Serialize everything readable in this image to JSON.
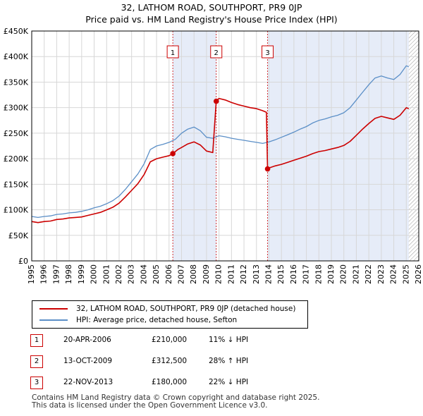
{
  "title_line1": "32, LATHOM ROAD, SOUTHPORT, PR9 0JP",
  "title_line2": "Price paid vs. HM Land Registry's House Price Index (HPI)",
  "legend": {
    "property_label": "32, LATHOM ROAD, SOUTHPORT, PR9 0JP (detached house)",
    "hpi_label": "HPI: Average price, detached house, Sefton"
  },
  "transactions": [
    {
      "id": "1",
      "date": "20-APR-2006",
      "price": "£210,000",
      "hpi": "11% ↓ HPI"
    },
    {
      "id": "2",
      "date": "13-OCT-2009",
      "price": "£312,500",
      "hpi": "28% ↑ HPI"
    },
    {
      "id": "3",
      "date": "22-NOV-2013",
      "price": "£180,000",
      "hpi": "22% ↓ HPI"
    }
  ],
  "footer_line1": "Contains HM Land Registry data © Crown copyright and database right 2025.",
  "footer_line2": "This data is licensed under the Open Government Licence v3.0.",
  "colors": {
    "property": "#cc0000",
    "hpi": "#5b8fc7",
    "shade": "#e6ecf8",
    "grid": "#d7d7d7",
    "future_hatch": "#999999"
  },
  "chart_data": {
    "type": "line",
    "title": "32, LATHOM ROAD, SOUTHPORT, PR9 0JP",
    "xlim": [
      1995,
      2026
    ],
    "ylim": [
      0,
      450000
    ],
    "x_ticks": [
      1995,
      1996,
      1997,
      1998,
      1999,
      2000,
      2001,
      2002,
      2003,
      2004,
      2005,
      2006,
      2007,
      2008,
      2009,
      2010,
      2011,
      2012,
      2013,
      2014,
      2015,
      2016,
      2017,
      2018,
      2019,
      2020,
      2021,
      2022,
      2023,
      2024,
      2025,
      2026
    ],
    "y_ticks": [
      {
        "value": 0,
        "label": "£0"
      },
      {
        "value": 50000,
        "label": "£50K"
      },
      {
        "value": 100000,
        "label": "£100K"
      },
      {
        "value": 150000,
        "label": "£150K"
      },
      {
        "value": 200000,
        "label": "£200K"
      },
      {
        "value": 250000,
        "label": "£250K"
      },
      {
        "value": 300000,
        "label": "£300K"
      },
      {
        "value": 350000,
        "label": "£350K"
      },
      {
        "value": 400000,
        "label": "£400K"
      },
      {
        "value": 450000,
        "label": "£450K"
      }
    ],
    "shaded_ranges": [
      [
        2006.3,
        2009.78
      ],
      [
        2013.89,
        2025.2
      ]
    ],
    "future_from": 2025.2,
    "markers": [
      {
        "label": "1",
        "x": 2006.3,
        "y": 210000
      },
      {
        "label": "2",
        "x": 2009.78,
        "y": 312500
      },
      {
        "label": "3",
        "x": 2013.89,
        "y": 180000
      }
    ],
    "series": [
      {
        "name": "HPI: Average price, detached house, Sefton",
        "x": [
          1995,
          1995.5,
          1996,
          1996.5,
          1997,
          1997.5,
          1998,
          1998.5,
          1999,
          1999.5,
          2000,
          2000.5,
          2001,
          2001.5,
          2002,
          2002.5,
          2003,
          2003.5,
          2004,
          2004.5,
          2005,
          2005.5,
          2006,
          2006.5,
          2007,
          2007.5,
          2008,
          2008.5,
          2009,
          2009.5,
          2010,
          2010.5,
          2011,
          2011.5,
          2012,
          2012.5,
          2013,
          2013.5,
          2014,
          2014.5,
          2015,
          2015.5,
          2016,
          2016.5,
          2017,
          2017.5,
          2018,
          2018.5,
          2019,
          2019.5,
          2020,
          2020.5,
          2021,
          2021.5,
          2022,
          2022.5,
          2023,
          2023.5,
          2024,
          2024.5,
          2025,
          2025.2
        ],
        "values": [
          87000,
          85000,
          87000,
          88000,
          91000,
          92000,
          94000,
          95000,
          97000,
          100000,
          104000,
          107000,
          112000,
          118000,
          127000,
          140000,
          155000,
          170000,
          190000,
          218000,
          225000,
          228000,
          232000,
          238000,
          250000,
          258000,
          262000,
          255000,
          242000,
          240000,
          245000,
          243000,
          240000,
          238000,
          236000,
          234000,
          232000,
          230000,
          233000,
          237000,
          242000,
          247000,
          252000,
          258000,
          263000,
          270000,
          275000,
          278000,
          282000,
          285000,
          290000,
          300000,
          315000,
          330000,
          345000,
          358000,
          362000,
          358000,
          355000,
          365000,
          382000,
          380000
        ]
      },
      {
        "name": "32, LATHOM ROAD, SOUTHPORT, PR9 0JP (detached house)",
        "x": [
          1995,
          1995.5,
          1996,
          1996.5,
          1997,
          1997.5,
          1998,
          1998.5,
          1999,
          1999.5,
          2000,
          2000.5,
          2001,
          2001.5,
          2002,
          2002.5,
          2003,
          2003.5,
          2004,
          2004.5,
          2005,
          2005.5,
          2006,
          2006.3,
          2006.7,
          2007,
          2007.5,
          2008,
          2008.5,
          2009,
          2009.5,
          2009.78,
          2010,
          2010.5,
          2011,
          2011.5,
          2012,
          2012.5,
          2013,
          2013.5,
          2013.8,
          2013.89,
          2014,
          2014.5,
          2015,
          2015.5,
          2016,
          2016.5,
          2017,
          2017.5,
          2018,
          2018.5,
          2019,
          2019.5,
          2020,
          2020.5,
          2021,
          2021.5,
          2022,
          2022.5,
          2023,
          2023.5,
          2024,
          2024.5,
          2025,
          2025.2
        ],
        "values": [
          77000,
          75000,
          77000,
          78000,
          81000,
          82000,
          84000,
          85000,
          86000,
          89000,
          92000,
          95000,
          100000,
          105000,
          113000,
          125000,
          138000,
          151000,
          169000,
          194000,
          200000,
          203000,
          206000,
          210000,
          218000,
          222000,
          229000,
          233000,
          227000,
          215000,
          212000,
          312500,
          318000,
          315000,
          310000,
          306000,
          303000,
          300000,
          298000,
          294000,
          291000,
          180000,
          182000,
          186000,
          189000,
          193000,
          197000,
          201000,
          205000,
          210000,
          214000,
          216000,
          219000,
          222000,
          226000,
          234000,
          246000,
          258000,
          269000,
          279000,
          283000,
          280000,
          277000,
          285000,
          300000,
          298000
        ]
      }
    ],
    "xlabel": "",
    "ylabel": ""
  }
}
